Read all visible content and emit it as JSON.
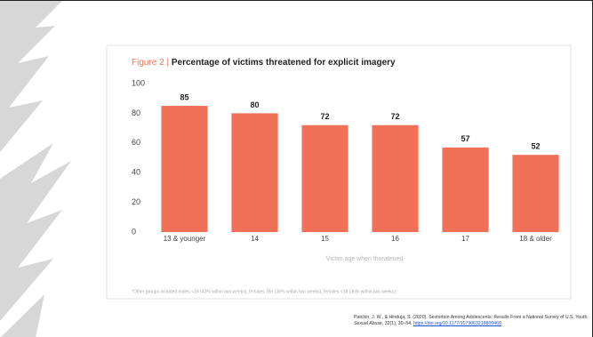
{
  "chart_data": {
    "type": "bar",
    "figure_label": "Figure 2 |",
    "title": "Percentage of victims threatened for explicit imagery",
    "categories": [
      "13 & younger",
      "14",
      "15",
      "16",
      "17",
      "18 & older"
    ],
    "values": [
      85,
      80,
      72,
      72,
      57,
      52
    ],
    "color": "#f07157",
    "ylim": [
      0,
      100
    ],
    "yticks": [
      0,
      20,
      40,
      60,
      80,
      100
    ],
    "xlabel": "Victim age when threatened",
    "footnote": "*Other groups included males <18 (43% within two weeks), females 18+ (36% within two weeks), females <18 (36% within two weeks).",
    "grid": false
  },
  "citation": {
    "before": "Patchin, J. W., & Hinduja, S. (2020). Sextortion Among Adolescents: Results From a National Survey of U.S. Youth.",
    "journal": "Sexual Abuse",
    "after": ", 32(1), 30–54.",
    "doi": "https://doi.org/10.1177/1079063218800469"
  }
}
